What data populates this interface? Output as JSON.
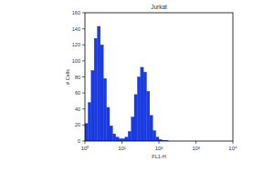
{
  "chart_data": {
    "type": "histogram",
    "title": "Jurkat",
    "x_label": "FL1-H",
    "y_label": "# Cells",
    "log": "x",
    "color": "#1a3be0",
    "grid": false,
    "xlim": [
      1,
      10000
    ],
    "xticks": [
      {
        "value": 1,
        "label": "10⁰"
      },
      {
        "value": 10,
        "label": "10¹"
      },
      {
        "value": 100,
        "label": "10²"
      },
      {
        "value": 1000,
        "label": "10³"
      },
      {
        "value": 10000,
        "label": "10⁴"
      }
    ],
    "ylim": [
      0,
      160
    ],
    "yticks": [
      0,
      20,
      40,
      60,
      80,
      100,
      120,
      140,
      160
    ],
    "bins": [
      1,
      1.2115,
      1.4678,
      1.7783,
      2.1544,
      2.6102,
      3.1623,
      3.8312,
      4.6416,
      5.6234,
      6.8129,
      8.254,
      10,
      12.115,
      14.678,
      17.783,
      21.544,
      26.102,
      31.623,
      38.312,
      46.416,
      56.234,
      68.129,
      82.54,
      100,
      121.15,
      146.78,
      177.83,
      215.44,
      261.02,
      316.23,
      383.12,
      464.16,
      562.34,
      681.29,
      825.4,
      1000,
      1211.5,
      1467.8,
      1778.3,
      2154.4,
      2610.2,
      3162.3,
      3831.2,
      4641.6,
      5623.4,
      6812.9,
      8254,
      10000
    ],
    "values": [
      22,
      48,
      88,
      128,
      143,
      120,
      78,
      42,
      19,
      9,
      5,
      3,
      3,
      5,
      12,
      30,
      58,
      80,
      92,
      86,
      62,
      32,
      13,
      5,
      2,
      1,
      1,
      0,
      0,
      0,
      0,
      0,
      0,
      0,
      0,
      0,
      0,
      0,
      0,
      0,
      0,
      0,
      0,
      0,
      0,
      0,
      0,
      0
    ]
  }
}
